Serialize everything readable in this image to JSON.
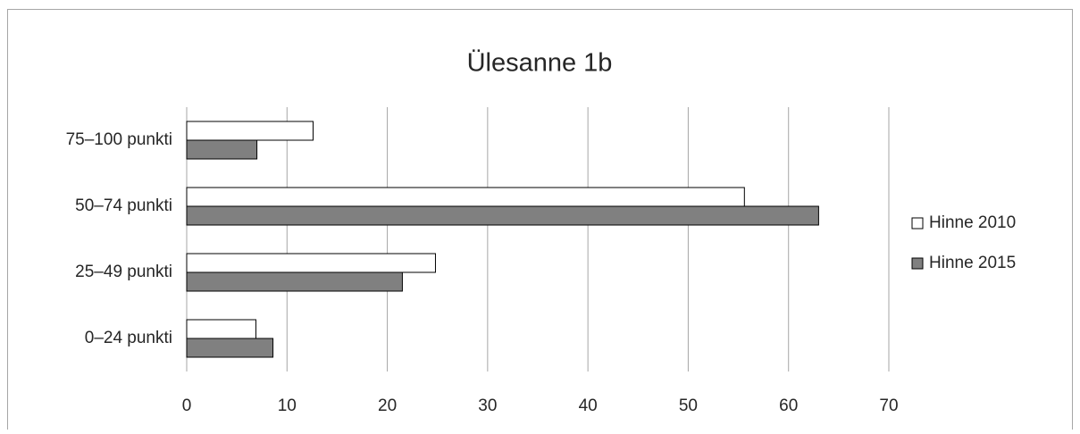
{
  "chart_data": {
    "type": "bar",
    "orientation": "horizontal",
    "title": "Ülesanne 1b",
    "categories": [
      "0–24 punkti",
      "25–49 punkti",
      "50–74 punkti",
      "75–100 punkti"
    ],
    "series": [
      {
        "name": "Hinne 2010",
        "color": "#ffffff",
        "values": [
          6.9,
          24.8,
          55.6,
          12.6
        ]
      },
      {
        "name": "Hinne 2015",
        "color": "#808080",
        "values": [
          8.6,
          21.5,
          63.0,
          7.0
        ]
      }
    ],
    "xlim": [
      0,
      70
    ],
    "xticks": [
      0,
      10,
      20,
      30,
      40,
      50,
      60,
      70
    ],
    "grid": true,
    "legend": "right"
  }
}
